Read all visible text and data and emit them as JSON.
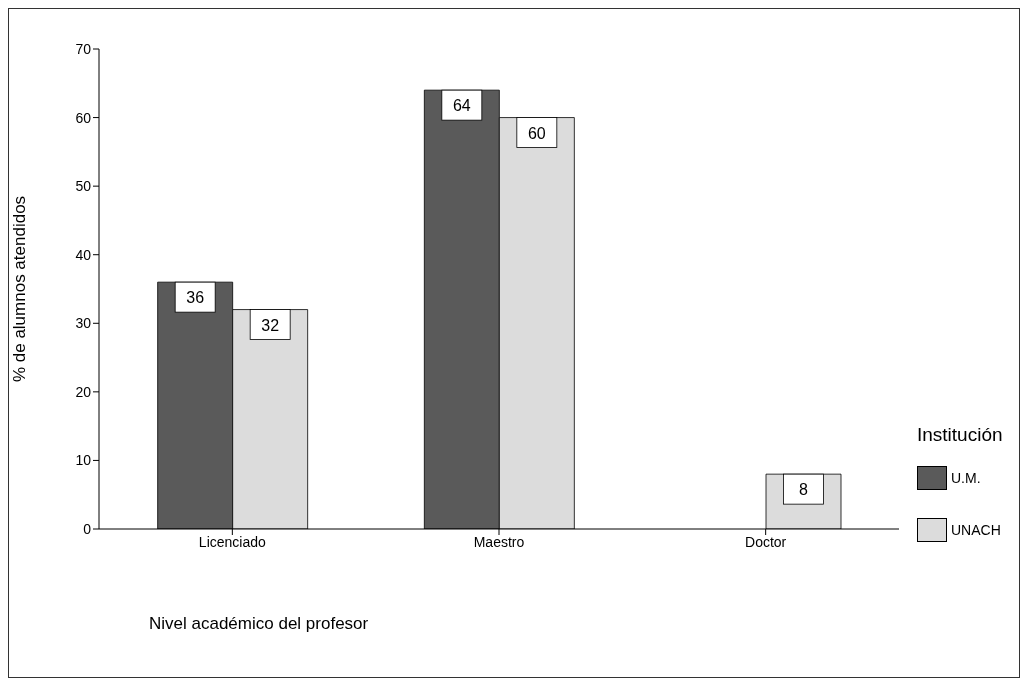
{
  "chart_data": {
    "type": "bar",
    "xlabel": "Nivel académico del profesor",
    "ylabel": "% de alumnos atendidos",
    "legend_title": "Institución",
    "categories": [
      "Licenciado",
      "Maestro",
      "Doctor"
    ],
    "series": [
      {
        "name": "U.M.",
        "color": "#5a5a5a",
        "values": [
          36,
          64,
          null
        ]
      },
      {
        "name": "UNACH",
        "color": "#dcdcdc",
        "values": [
          32,
          60,
          8
        ]
      }
    ],
    "ylim": [
      0,
      70
    ],
    "yticks": [
      0,
      10,
      20,
      30,
      40,
      50,
      60,
      70
    ],
    "data_labels": true,
    "legend": "right"
  }
}
